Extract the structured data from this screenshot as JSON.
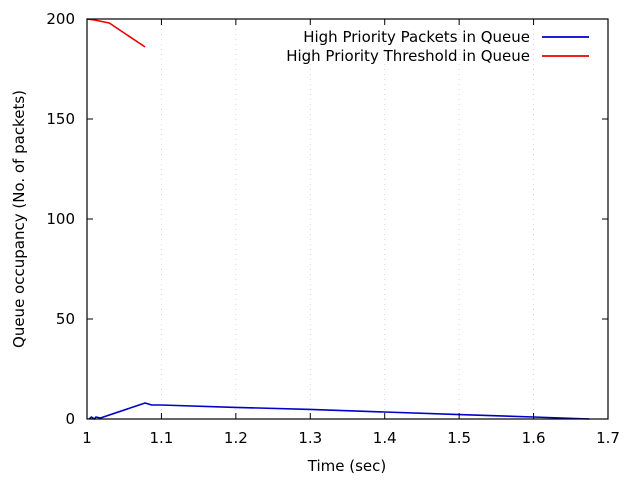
{
  "chart_data": {
    "type": "line",
    "title": "",
    "xlabel": "Time (sec)",
    "ylabel": "Queue occupancy (No. of packets)",
    "xlim": [
      1,
      1.7
    ],
    "ylim": [
      0,
      200
    ],
    "x_ticks": [
      1,
      1.1,
      1.2,
      1.3,
      1.4,
      1.5,
      1.6,
      1.7
    ],
    "x_tick_labels": [
      "1",
      "1.1",
      "1.2",
      "1.3",
      "1.4",
      "1.5",
      "1.6",
      "1.7"
    ],
    "y_ticks": [
      0,
      50,
      100,
      150,
      200
    ],
    "y_tick_labels": [
      "0",
      "50",
      "100",
      "150",
      "200"
    ],
    "grid": "vertical dotted",
    "legend_position": "top-right",
    "series": [
      {
        "name": "High Priority Packets in Queue",
        "color": "#0000cc",
        "x": [
          1.003,
          1.006,
          1.01,
          1.012,
          1.018,
          1.078,
          1.087,
          1.1,
          1.2,
          1.3,
          1.4,
          1.5,
          1.6,
          1.675
        ],
        "y": [
          0,
          1,
          0,
          1,
          0.5,
          8,
          7,
          7,
          5.8,
          4.8,
          3.5,
          2.2,
          1,
          0
        ]
      },
      {
        "name": "High Priority Threshold in Queue",
        "color": "#ee0000",
        "x": [
          1.0,
          1.01,
          1.03,
          1.078
        ],
        "y": [
          200,
          199.5,
          198,
          186
        ]
      }
    ]
  }
}
